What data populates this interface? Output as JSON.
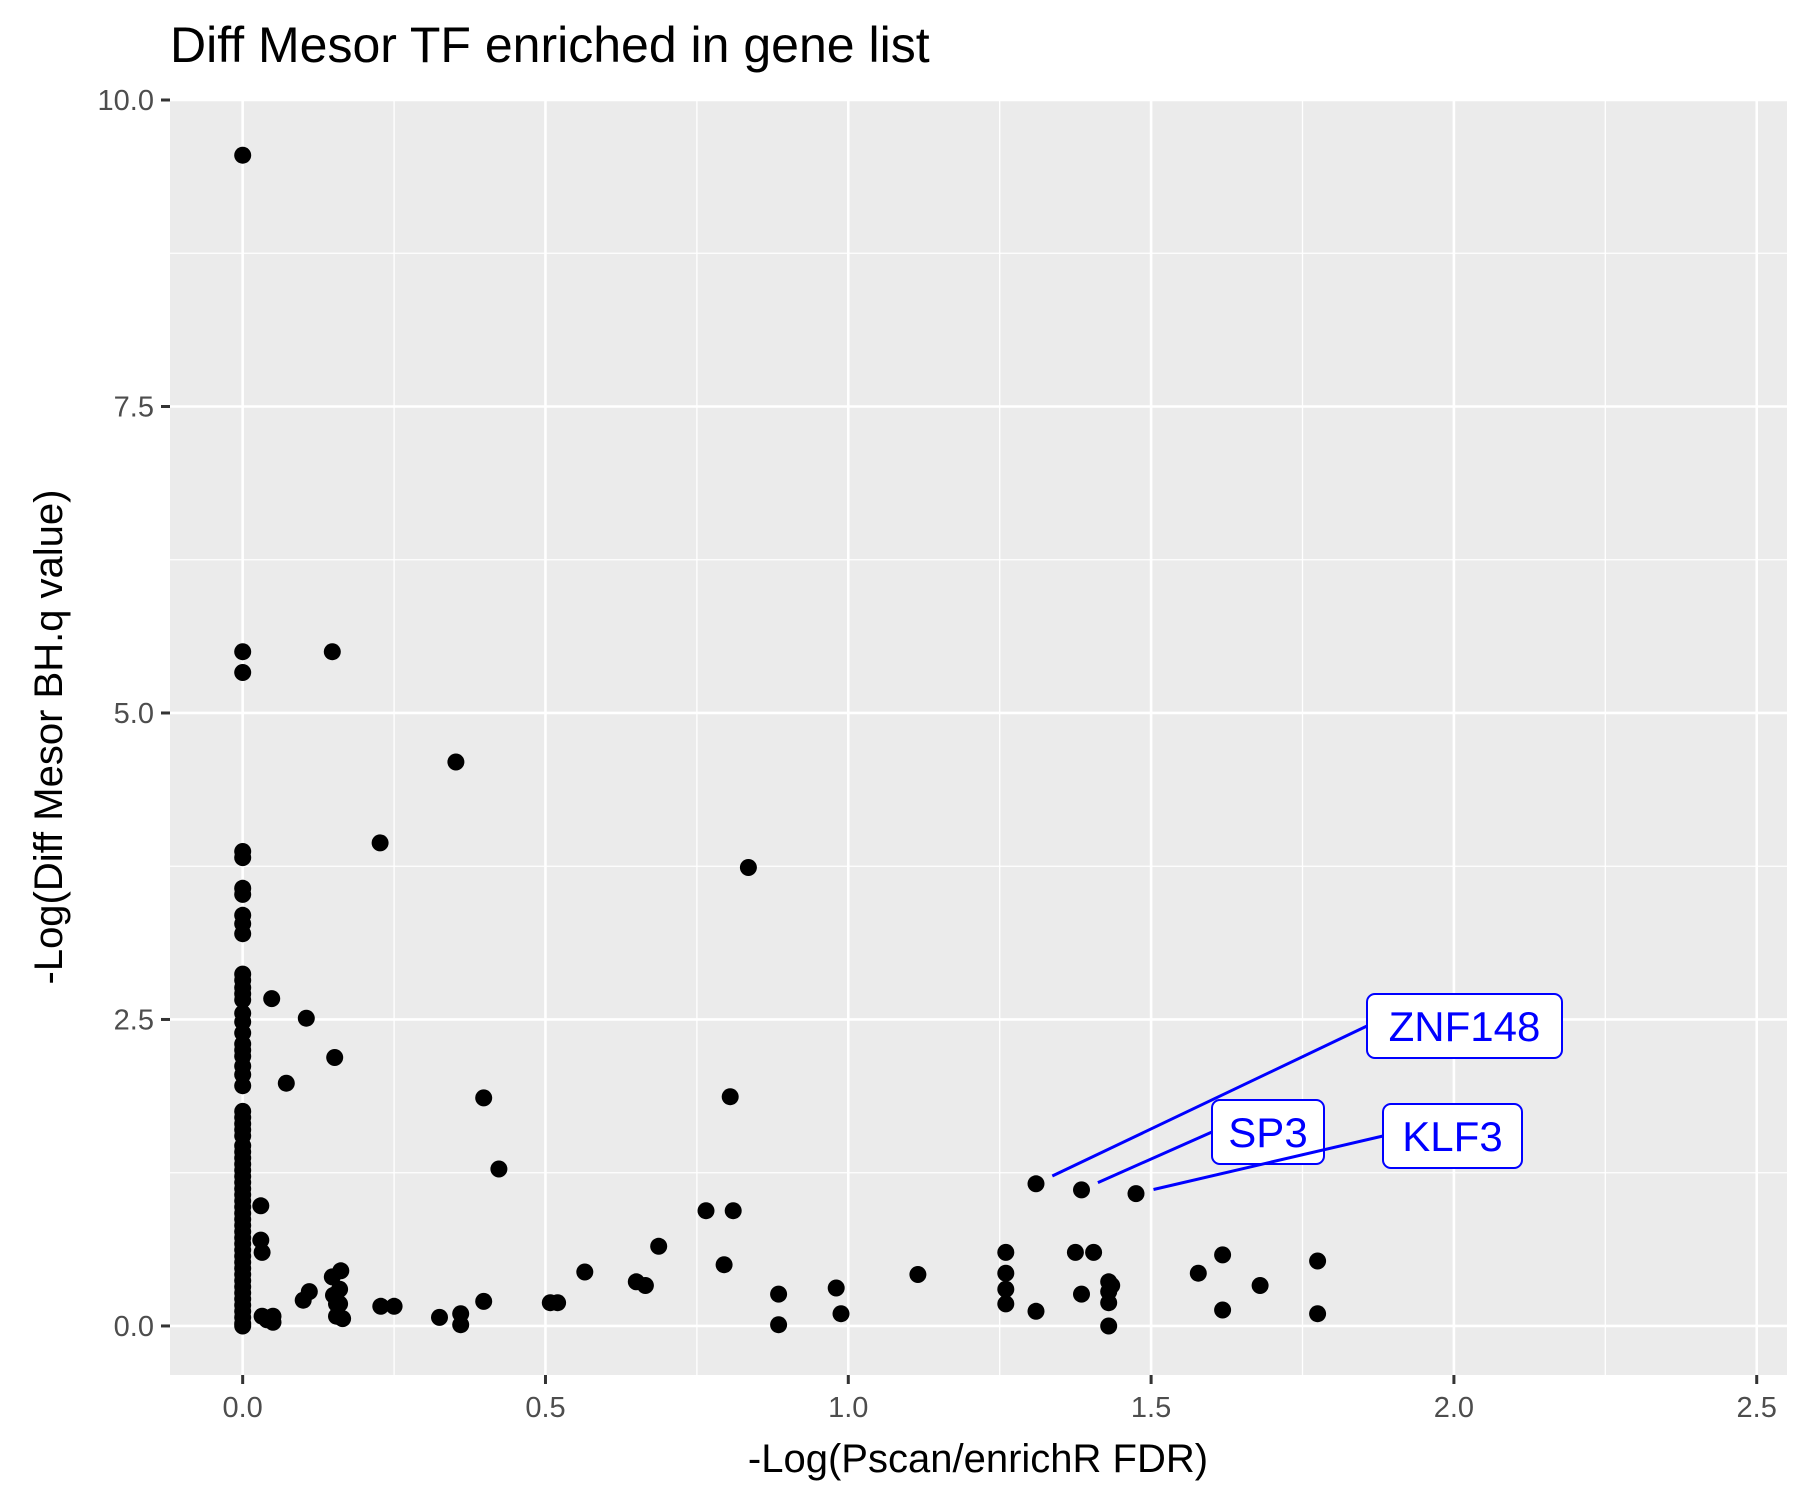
{
  "chart_data": {
    "type": "scatter",
    "title": "Diff Mesor TF enriched in gene list",
    "xlabel": "-Log(Pscan/enrichR FDR)",
    "ylabel": "-Log(Diff Mesor BH.q value)",
    "xlim": [
      -0.12,
      2.55
    ],
    "ylim": [
      -0.4,
      10.0
    ],
    "x_ticks": [
      0.0,
      0.5,
      1.0,
      1.5,
      2.0,
      2.5
    ],
    "x_tick_labels": [
      "0.0",
      "0.5",
      "1.0",
      "1.5",
      "2.0",
      "2.5"
    ],
    "y_ticks": [
      0.0,
      2.5,
      5.0,
      7.5,
      10.0
    ],
    "y_tick_labels": [
      "0.0",
      "2.5",
      "5.0",
      "7.5",
      "10.0"
    ],
    "grid": true,
    "points": [
      [
        0,
        9.55
      ],
      [
        0,
        5.5
      ],
      [
        0,
        5.33
      ],
      [
        0,
        3.87
      ],
      [
        0,
        3.82
      ],
      [
        0,
        3.57
      ],
      [
        0,
        3.52
      ],
      [
        0,
        3.35
      ],
      [
        0,
        3.28
      ],
      [
        0,
        3.2
      ],
      [
        0,
        2.87
      ],
      [
        0,
        2.82
      ],
      [
        0,
        2.76
      ],
      [
        0,
        2.71
      ],
      [
        0,
        2.66
      ],
      [
        0,
        2.55
      ],
      [
        0,
        2.48
      ],
      [
        0,
        2.39
      ],
      [
        0,
        2.3
      ],
      [
        0,
        2.25
      ],
      [
        0,
        2.2
      ],
      [
        0,
        2.12
      ],
      [
        0,
        2.05
      ],
      [
        0,
        1.96
      ],
      [
        0,
        1.75
      ],
      [
        0,
        1.7
      ],
      [
        0,
        1.65
      ],
      [
        0,
        1.6
      ],
      [
        0,
        1.55
      ],
      [
        0,
        1.47
      ],
      [
        0,
        1.42
      ],
      [
        0,
        1.37
      ],
      [
        0,
        1.32
      ],
      [
        0,
        1.27
      ],
      [
        0,
        1.22
      ],
      [
        0,
        1.17
      ],
      [
        0,
        1.12
      ],
      [
        0,
        1.07
      ],
      [
        0,
        1.02
      ],
      [
        0,
        0.97
      ],
      [
        0,
        0.92
      ],
      [
        0,
        0.87
      ],
      [
        0,
        0.82
      ],
      [
        0,
        0.77
      ],
      [
        0,
        0.72
      ],
      [
        0,
        0.67
      ],
      [
        0,
        0.62
      ],
      [
        0,
        0.57
      ],
      [
        0,
        0.52
      ],
      [
        0,
        0.47
      ],
      [
        0,
        0.42
      ],
      [
        0,
        0.37
      ],
      [
        0,
        0.32
      ],
      [
        0,
        0.27
      ],
      [
        0,
        0.22
      ],
      [
        0,
        0.17
      ],
      [
        0,
        0.12
      ],
      [
        0,
        0.07
      ],
      [
        0,
        0.02
      ],
      [
        0,
        0.0
      ],
      [
        0.03,
        0.98
      ],
      [
        0.03,
        0.7
      ],
      [
        0.032,
        0.6
      ],
      [
        0.032,
        0.08
      ],
      [
        0.04,
        0.05
      ],
      [
        0.05,
        0.03
      ],
      [
        0.05,
        0.08
      ],
      [
        0.048,
        2.67
      ],
      [
        0.072,
        1.98
      ],
      [
        0.1,
        0.21
      ],
      [
        0.105,
        2.51
      ],
      [
        0.11,
        0.28
      ],
      [
        0.148,
        5.5
      ],
      [
        0.148,
        0.4
      ],
      [
        0.15,
        0.25
      ],
      [
        0.152,
        2.19
      ],
      [
        0.155,
        0.08
      ],
      [
        0.155,
        0.18
      ],
      [
        0.16,
        0.3
      ],
      [
        0.16,
        0.18
      ],
      [
        0.162,
        0.45
      ],
      [
        0.165,
        0.06
      ],
      [
        0.227,
        3.94
      ],
      [
        0.228,
        0.16
      ],
      [
        0.25,
        0.16
      ],
      [
        0.325,
        0.07
      ],
      [
        0.352,
        4.6
      ],
      [
        0.36,
        0.1
      ],
      [
        0.36,
        0.01
      ],
      [
        0.398,
        0.2
      ],
      [
        0.398,
        1.86
      ],
      [
        0.423,
        1.28
      ],
      [
        0.508,
        0.19
      ],
      [
        0.52,
        0.19
      ],
      [
        0.565,
        0.44
      ],
      [
        0.65,
        0.36
      ],
      [
        0.665,
        0.33
      ],
      [
        0.687,
        0.65
      ],
      [
        0.765,
        0.94
      ],
      [
        0.795,
        0.5
      ],
      [
        0.805,
        1.87
      ],
      [
        0.81,
        0.94
      ],
      [
        0.835,
        3.74
      ],
      [
        0.885,
        0.26
      ],
      [
        0.885,
        0.01
      ],
      [
        0.98,
        0.31
      ],
      [
        0.988,
        0.1
      ],
      [
        1.115,
        0.42
      ],
      [
        1.26,
        0.6
      ],
      [
        1.26,
        0.43
      ],
      [
        1.26,
        0.3
      ],
      [
        1.26,
        0.18
      ],
      [
        1.31,
        1.16
      ],
      [
        1.31,
        0.12
      ],
      [
        1.375,
        0.6
      ],
      [
        1.385,
        1.11
      ],
      [
        1.385,
        0.26
      ],
      [
        1.405,
        0.6
      ],
      [
        1.43,
        0.36
      ],
      [
        1.43,
        0.28
      ],
      [
        1.43,
        0.19
      ],
      [
        1.43,
        0.0
      ],
      [
        1.435,
        0.33
      ],
      [
        1.475,
        1.08
      ],
      [
        1.578,
        0.43
      ],
      [
        1.618,
        0.58
      ],
      [
        1.618,
        0.13
      ],
      [
        1.68,
        0.33
      ],
      [
        1.775,
        0.53
      ],
      [
        1.775,
        0.1
      ]
    ],
    "annotations": [
      {
        "text": "ZNF148",
        "x": 1.31,
        "y": 1.16
      },
      {
        "text": "SP3",
        "x": 1.385,
        "y": 1.11
      },
      {
        "text": "KLF3",
        "x": 1.475,
        "y": 1.08
      }
    ]
  }
}
